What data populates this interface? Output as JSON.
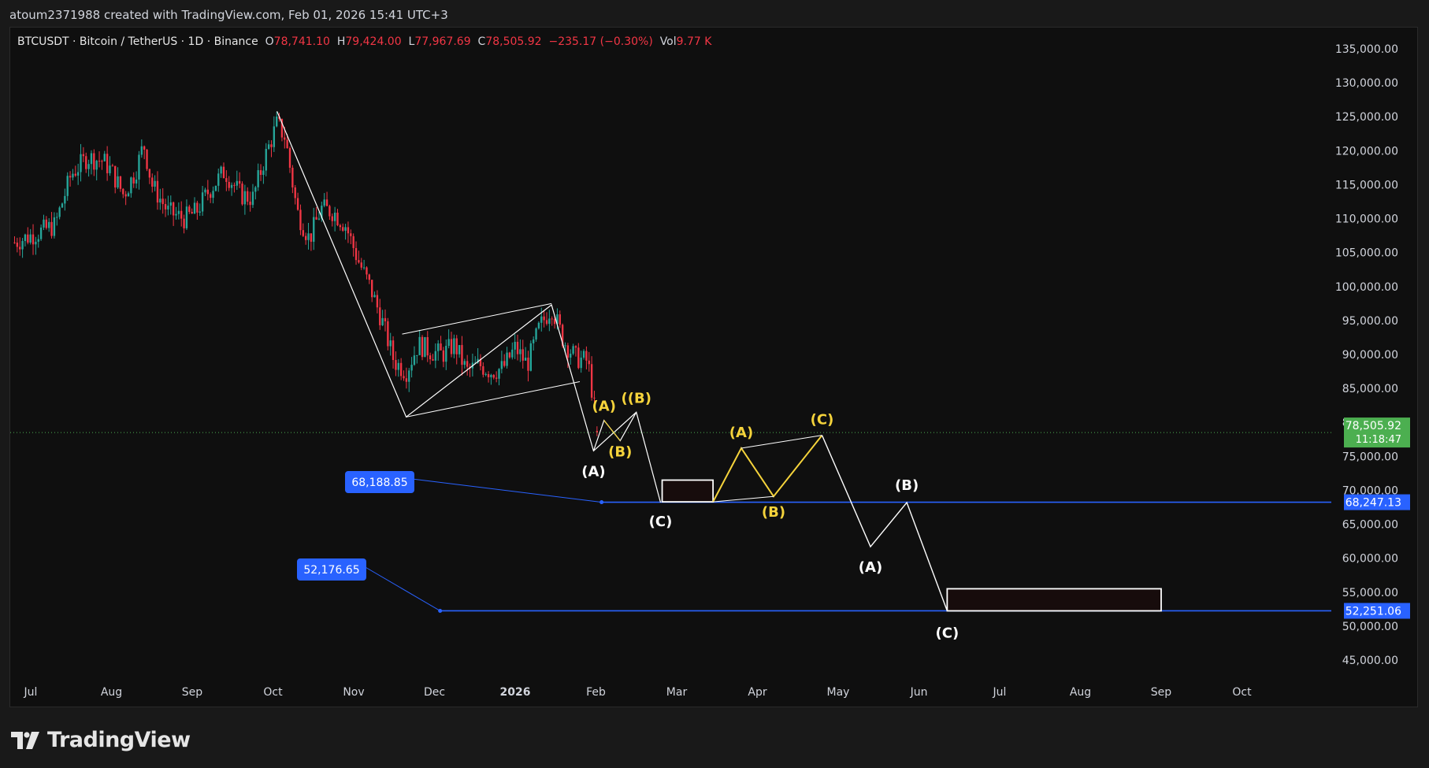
{
  "caption": "atoum2371988 created with TradingView.com, Feb 01, 2026 15:41 UTC+3",
  "legend": {
    "symbol": "BTCUSDT · Bitcoin / TetherUS · 1D · Binance",
    "open_label": "O",
    "open": "78,741.10",
    "high_label": "H",
    "high": "79,424.00",
    "low_label": "L",
    "low": "77,967.69",
    "close_label": "C",
    "close": "78,505.92",
    "change": "−235.17 (−0.30%)",
    "vol_label": "Vol",
    "vol": "9.77 K"
  },
  "brand": "TradingView",
  "colors": {
    "up": "#26a69a",
    "down": "#f23645",
    "wave": "#ffffff",
    "sub_wave": "#f5d33b",
    "level": "#2962ff",
    "price_badge": "#4caf50"
  },
  "chart_data": {
    "type": "candlestick",
    "x_unit": "month_index_from_2025-07-01",
    "ylim": [
      42000,
      138000
    ],
    "x_ticks": [
      {
        "x": 0,
        "label": "Jul"
      },
      {
        "x": 1,
        "label": "Aug"
      },
      {
        "x": 2,
        "label": "Sep"
      },
      {
        "x": 3,
        "label": "Oct"
      },
      {
        "x": 4,
        "label": "Nov"
      },
      {
        "x": 5,
        "label": "Dec"
      },
      {
        "x": 6,
        "label": "2026",
        "bold": true
      },
      {
        "x": 7,
        "label": "Feb"
      },
      {
        "x": 8,
        "label": "Mar"
      },
      {
        "x": 9,
        "label": "Apr"
      },
      {
        "x": 10,
        "label": "May"
      },
      {
        "x": 11,
        "label": "Jun"
      },
      {
        "x": 12,
        "label": "Jul"
      },
      {
        "x": 13,
        "label": "Aug"
      },
      {
        "x": 14,
        "label": "Sep"
      },
      {
        "x": 15,
        "label": "Oct"
      }
    ],
    "y_ticks": [
      "135,000.00",
      "130,000.00",
      "125,000.00",
      "120,000.00",
      "115,000.00",
      "110,000.00",
      "105,000.00",
      "100,000.00",
      "95,000.00",
      "90,000.00",
      "85,000.00",
      "80,000.00",
      "75,000.00",
      "70,000.00",
      "65,000.00",
      "60,000.00",
      "55,000.00",
      "50,000.00",
      "45,000.00"
    ],
    "y_tick_values": [
      135000,
      130000,
      125000,
      120000,
      115000,
      110000,
      105000,
      100000,
      95000,
      90000,
      85000,
      80000,
      75000,
      70000,
      65000,
      60000,
      55000,
      50000,
      45000
    ],
    "price_path": [
      [
        -0.2,
        106500
      ],
      [
        0.1,
        108000
      ],
      [
        0.3,
        109000
      ],
      [
        0.5,
        116500
      ],
      [
        0.7,
        119000
      ],
      [
        0.9,
        118500
      ],
      [
        1.0,
        117000
      ],
      [
        1.15,
        113500
      ],
      [
        1.3,
        117000
      ],
      [
        1.4,
        121000
      ],
      [
        1.5,
        115000
      ],
      [
        1.7,
        111000
      ],
      [
        1.9,
        110000
      ],
      [
        2.05,
        111000
      ],
      [
        2.2,
        114000
      ],
      [
        2.4,
        117000
      ],
      [
        2.6,
        113500
      ],
      [
        2.75,
        113000
      ],
      [
        2.9,
        119000
      ],
      [
        3.05,
        124000
      ],
      [
        3.15,
        122000
      ],
      [
        3.3,
        111000
      ],
      [
        3.45,
        107000
      ],
      [
        3.6,
        111500
      ],
      [
        3.75,
        111000
      ],
      [
        3.9,
        109000
      ],
      [
        4.05,
        104000
      ],
      [
        4.2,
        100000
      ],
      [
        4.35,
        95000
      ],
      [
        4.5,
        89000
      ],
      [
        4.65,
        87500
      ],
      [
        4.8,
        91500
      ],
      [
        4.95,
        90500
      ],
      [
        5.1,
        90000
      ],
      [
        5.25,
        91500
      ],
      [
        5.4,
        87500
      ],
      [
        5.55,
        88500
      ],
      [
        5.7,
        87500
      ],
      [
        5.85,
        88000
      ],
      [
        6.0,
        91000
      ],
      [
        6.15,
        88500
      ],
      [
        6.3,
        94000
      ],
      [
        6.45,
        97000
      ],
      [
        6.6,
        92000
      ],
      [
        6.75,
        89500
      ],
      [
        6.9,
        89000
      ],
      [
        6.97,
        83000
      ],
      [
        7.03,
        78506
      ]
    ],
    "last_price": {
      "value": 78505.92,
      "label": "78,505.92",
      "countdown": "11:18:47"
    },
    "levels": [
      {
        "value": 68247.13,
        "label": "68,247.13",
        "x_start": 7.07,
        "callout": "68,188.85"
      },
      {
        "value": 52251.06,
        "label": "52,251.06",
        "x_start": 5.07,
        "callout": "52,176.65"
      }
    ],
    "projection_main": [
      {
        "x": 3.05,
        "y": 125800,
        "label": ""
      },
      {
        "x": 4.65,
        "y": 80800,
        "label": ""
      },
      {
        "x": 6.45,
        "y": 97300,
        "label": ""
      },
      {
        "x": 6.97,
        "y": 75800,
        "label": "(A)"
      },
      {
        "x": 7.5,
        "y": 81500,
        "label": "(B)"
      },
      {
        "x": 7.8,
        "y": 68200,
        "label": "(C)"
      }
    ],
    "inner_channel": [
      [
        4.6,
        93000
      ],
      [
        6.45,
        97500
      ],
      [
        6.8,
        86000
      ],
      [
        4.65,
        80800
      ]
    ],
    "sub_abc_1": [
      {
        "x": 6.97,
        "y": 75800,
        "label": ""
      },
      {
        "x": 7.1,
        "y": 80300,
        "label": "(A)"
      },
      {
        "x": 7.3,
        "y": 77300,
        "label": "(B)"
      },
      {
        "x": 7.5,
        "y": 81500,
        "label": "((B)"
      }
    ],
    "projection_sub": [
      {
        "x": 8.45,
        "y": 68300,
        "label": ""
      },
      {
        "x": 8.8,
        "y": 76200,
        "label": "(A)"
      },
      {
        "x": 9.2,
        "y": 69100,
        "label": "(B)"
      },
      {
        "x": 9.8,
        "y": 78100,
        "label": "(C)"
      }
    ],
    "projection_future": [
      {
        "x": 9.8,
        "y": 78100,
        "label": ""
      },
      {
        "x": 10.4,
        "y": 61700,
        "label": "(A)"
      },
      {
        "x": 10.85,
        "y": 68200,
        "label": "(B)"
      },
      {
        "x": 11.35,
        "y": 52250,
        "label": "(C)"
      }
    ],
    "target_boxes": [
      {
        "x0": 7.82,
        "x1": 8.45,
        "y0": 68300,
        "y1": 71500
      },
      {
        "x0": 11.35,
        "x1": 14.0,
        "y0": 52250,
        "y1": 55500
      }
    ]
  }
}
